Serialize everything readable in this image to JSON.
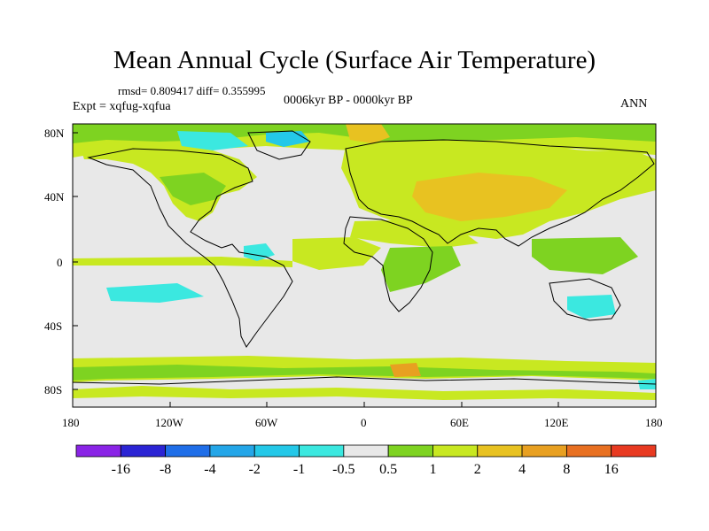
{
  "title": "Mean Annual Cycle (Surface Air Temperature)",
  "stats": "rmsd= 0.809417 diff= 0.355995",
  "expt": "Expt = xqfug-xqfua",
  "period": "0006kyr BP - 0000kyr BP",
  "season": "ANN",
  "lat_labels": [
    "80N",
    "40N",
    "0",
    "40S",
    "80S"
  ],
  "lon_labels": [
    "180",
    "120W",
    "60W",
    "0",
    "60E",
    "120E",
    "180"
  ],
  "colorbar": {
    "labels": [
      "-16",
      "-8",
      "-4",
      "-2",
      "-1",
      "-0.5",
      "0.5",
      "1",
      "2",
      "4",
      "8",
      "16"
    ],
    "colors": [
      "#8a24e6",
      "#2b24d4",
      "#1f6ee8",
      "#24a6e8",
      "#24c8e8",
      "#3be8e0",
      "#e8e8e8",
      "#7ed321",
      "#c8e821",
      "#e8c221",
      "#e8a021",
      "#e87021",
      "#e83a21"
    ]
  },
  "colors": {
    "land_positive": "#c8e821",
    "warm": "#e8c221",
    "hot": "#e8a021",
    "cool": "#3be8e0",
    "neutral": "#e8e8e8",
    "green": "#7ed321"
  }
}
